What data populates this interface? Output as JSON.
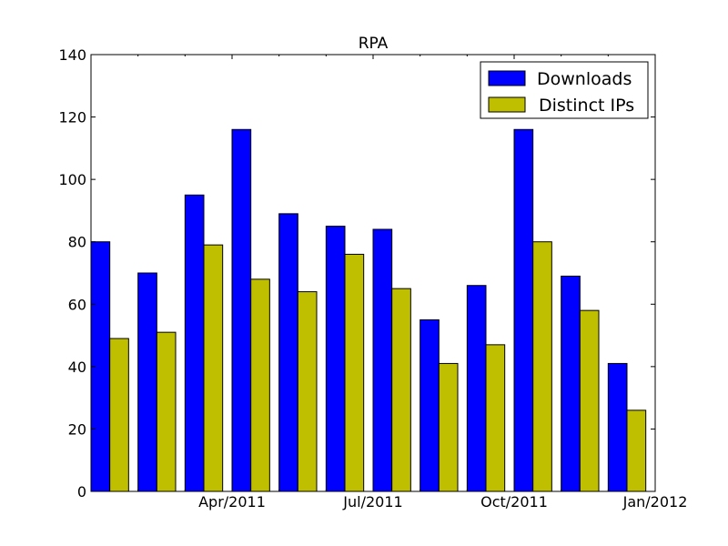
{
  "chart_data": {
    "type": "bar",
    "title": "RPA",
    "xlabel": "",
    "ylabel": "",
    "ylim": [
      0,
      140
    ],
    "yticks": [
      0,
      20,
      40,
      60,
      80,
      100,
      120,
      140
    ],
    "categories": [
      "2011-01",
      "2011-02",
      "2011-03",
      "2011-04",
      "2011-05",
      "2011-06",
      "2011-07",
      "2011-08",
      "2011-09",
      "2011-10",
      "2011-11",
      "2011-12"
    ],
    "xtick_labels": [
      "Apr/2011",
      "Jul/2011",
      "Oct/2011",
      "Jan/2012"
    ],
    "legend_position": "top-right",
    "grid": false,
    "series": [
      {
        "name": "Downloads",
        "color": "#0000ff",
        "values": [
          80,
          70,
          95,
          116,
          89,
          85,
          84,
          55,
          66,
          116,
          69,
          41
        ]
      },
      {
        "name": "Distinct IPs",
        "color": "#bfbf00",
        "values": [
          49,
          51,
          79,
          68,
          64,
          76,
          65,
          41,
          47,
          80,
          58,
          26
        ]
      }
    ]
  }
}
